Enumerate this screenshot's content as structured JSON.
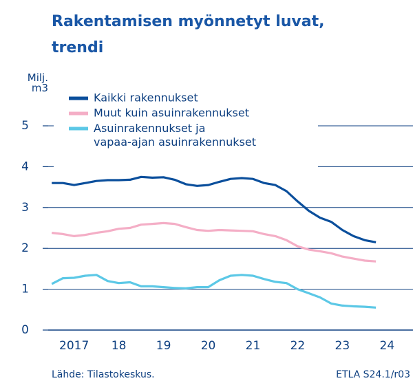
{
  "chart_data": {
    "type": "line",
    "title": "Rakentamisen myönnetyt luvat,\ntrendi",
    "y_label": "Milj.\nm3",
    "source": "Lähde:  Tilastokeskus.",
    "code": "ETLA S24.1/r03",
    "x": [
      2017.0,
      2017.25,
      2017.5,
      2017.75,
      2018.0,
      2018.25,
      2018.5,
      2018.75,
      2019.0,
      2019.25,
      2019.5,
      2019.75,
      2020.0,
      2020.25,
      2020.5,
      2020.75,
      2021.0,
      2021.25,
      2021.5,
      2021.75,
      2022.0,
      2022.25,
      2022.5,
      2022.75,
      2023.0,
      2023.25,
      2023.5,
      2023.75,
      2024.0,
      2024.25
    ],
    "series": [
      {
        "name": "Kaikki rakennukset",
        "color": "#0b4f9c",
        "values": [
          3.6,
          3.6,
          3.55,
          3.6,
          3.65,
          3.67,
          3.67,
          3.68,
          3.75,
          3.73,
          3.74,
          3.68,
          3.57,
          3.53,
          3.55,
          3.63,
          3.7,
          3.72,
          3.7,
          3.6,
          3.55,
          3.4,
          3.15,
          2.92,
          2.75,
          2.65,
          2.45,
          2.3,
          2.2,
          2.15
        ]
      },
      {
        "name": "Muut kuin asuinrakennukset",
        "color": "#f4aec6",
        "values": [
          2.38,
          2.35,
          2.3,
          2.33,
          2.38,
          2.42,
          2.48,
          2.5,
          2.58,
          2.6,
          2.62,
          2.6,
          2.52,
          2.45,
          2.43,
          2.45,
          2.44,
          2.43,
          2.42,
          2.35,
          2.3,
          2.2,
          2.05,
          1.97,
          1.93,
          1.88,
          1.8,
          1.75,
          1.7,
          1.68
        ]
      },
      {
        "name": "Asuinrakennukset ja\nvapaa-ajan asuinrakennukset",
        "color": "#5cc8e6",
        "values": [
          1.13,
          1.27,
          1.28,
          1.33,
          1.35,
          1.2,
          1.15,
          1.17,
          1.07,
          1.07,
          1.05,
          1.03,
          1.02,
          1.05,
          1.05,
          1.22,
          1.33,
          1.35,
          1.33,
          1.25,
          1.18,
          1.15,
          1.0,
          0.9,
          0.8,
          0.65,
          0.6,
          0.58,
          0.57,
          0.55
        ]
      }
    ],
    "xlim": [
      2016.92,
      2025.08
    ],
    "xticks": [
      {
        "value": 2017.5,
        "label": "2017"
      },
      {
        "value": 2018.5,
        "label": "18"
      },
      {
        "value": 2019.5,
        "label": "19"
      },
      {
        "value": 2020.5,
        "label": "20"
      },
      {
        "value": 2021.5,
        "label": "21"
      },
      {
        "value": 2022.5,
        "label": "22"
      },
      {
        "value": 2023.5,
        "label": "23"
      },
      {
        "value": 2024.5,
        "label": "24"
      }
    ],
    "ylim": [
      0,
      5
    ],
    "yticks": [
      0,
      1,
      2,
      3,
      4,
      5
    ],
    "grid": true,
    "legend": "top-left"
  }
}
